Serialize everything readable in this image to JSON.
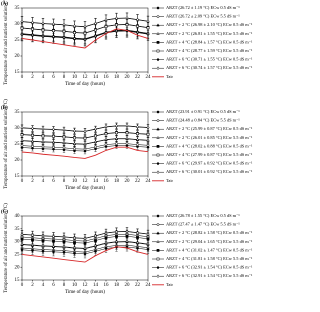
{
  "chart_data": [
    {
      "type": "line",
      "label": "(A)",
      "xlabel": "Time of day (hours)",
      "ylabel": "Temperature of air and nutrient solution (°C)",
      "x": [
        0,
        2,
        4,
        6,
        8,
        10,
        12,
        14,
        16,
        18,
        20,
        22,
        24
      ],
      "xlim": [
        0,
        24
      ],
      "xticks": [
        0,
        2,
        4,
        6,
        8,
        10,
        12,
        14,
        16,
        18,
        20,
        22,
        24
      ],
      "ylim": [
        15,
        35
      ],
      "yticks": [
        15,
        20,
        25,
        30,
        35
      ],
      "series": [
        {
          "name": "ARZT (26.72 ± 1.19 °C) ECw 0.5 dS m⁻¹",
          "color": "#000000",
          "marker": "circle",
          "error": 1.2,
          "values": [
            26.7,
            26.4,
            26.1,
            25.9,
            25.7,
            25.3,
            25.1,
            26.1,
            27.2,
            27.7,
            27.8,
            27.3,
            26.8
          ]
        },
        {
          "name": "ARZT (26.72 ± 2.09 °C) ECw 5.5 dS m⁻¹",
          "color": "#000000",
          "marker": "circle-open",
          "error": 2.1,
          "values": [
            26.8,
            26.5,
            26.2,
            26.0,
            25.8,
            25.4,
            25.2,
            26.2,
            27.3,
            27.8,
            27.9,
            27.4,
            26.9
          ]
        },
        {
          "name": "ARZT + 2 °C (26.98 ± 2.10 °C) ECw 0.5 dS m⁻¹",
          "color": "#000000",
          "marker": "triangle",
          "error": 2.1,
          "values": [
            27.0,
            26.7,
            26.4,
            26.2,
            26.0,
            25.6,
            25.4,
            26.4,
            27.5,
            28.0,
            28.1,
            27.6,
            27.1
          ]
        },
        {
          "name": "ARZT + 2 °C (26.81 ± 1.55 °C) ECw 5.5 dS m⁻¹",
          "color": "#000000",
          "marker": "triangle-open",
          "error": 1.6,
          "values": [
            26.9,
            26.6,
            26.3,
            26.1,
            25.9,
            25.5,
            25.3,
            26.3,
            27.4,
            27.9,
            28.0,
            27.5,
            27.0
          ]
        },
        {
          "name": "ARZT + 4 °C (28.84 ± 1.57 °C) ECw 0.5 dS m⁻¹",
          "color": "#000000",
          "marker": "square",
          "error": 1.6,
          "values": [
            28.8,
            28.5,
            28.2,
            28.0,
            27.8,
            27.4,
            27.2,
            28.2,
            29.3,
            29.8,
            29.9,
            29.4,
            28.9
          ]
        },
        {
          "name": "ARZT + 4 °C (28.77 ± 1.59 °C) ECw 5.5 dS m⁻¹",
          "color": "#000000",
          "marker": "square-open",
          "error": 1.6,
          "values": [
            28.7,
            28.4,
            28.1,
            27.9,
            27.7,
            27.3,
            27.1,
            28.1,
            29.2,
            29.7,
            29.8,
            29.3,
            28.8
          ]
        },
        {
          "name": "ARZT + 6 °C (30.71 ± 1.55 °C) ECw 0.5 dS m⁻¹",
          "color": "#000000",
          "marker": "diamond",
          "error": 1.6,
          "values": [
            30.7,
            30.4,
            30.1,
            29.9,
            29.7,
            29.3,
            29.1,
            30.1,
            31.2,
            31.7,
            31.8,
            31.3,
            30.8
          ]
        },
        {
          "name": "ARZT + 6 °C (30.74 ± 1.57 °C) ECw 5.5 dS m⁻¹",
          "color": "#000000",
          "marker": "diamond-open",
          "error": 1.6,
          "values": [
            30.8,
            30.5,
            30.2,
            30.0,
            29.8,
            29.4,
            29.2,
            30.2,
            31.3,
            31.8,
            31.9,
            31.4,
            30.9
          ]
        },
        {
          "name": "Tair",
          "color": "#d62728",
          "marker": "none",
          "values": [
            25.5,
            25.0,
            24.5,
            24.0,
            23.5,
            23.0,
            22.5,
            25.0,
            27.0,
            28.5,
            28.0,
            26.5,
            25.5
          ]
        }
      ]
    },
    {
      "type": "line",
      "label": "(B)",
      "xlabel": "Time of day (hours)",
      "ylabel": "Temperature of air and nutrient solution (°C)",
      "x": [
        0,
        2,
        4,
        6,
        8,
        10,
        12,
        14,
        16,
        18,
        20,
        22,
        24
      ],
      "xlim": [
        0,
        24
      ],
      "xticks": [
        0,
        2,
        4,
        6,
        8,
        10,
        12,
        14,
        16,
        18,
        20,
        22,
        24
      ],
      "ylim": [
        15,
        35
      ],
      "yticks": [
        15,
        20,
        25,
        30,
        35
      ],
      "series": [
        {
          "name": "ARZT (23.91 ± 0.91 °C) ECw 0.5 dS m⁻¹",
          "color": "#000000",
          "marker": "circle",
          "error": 0.9,
          "values": [
            23.9,
            23.7,
            23.5,
            23.4,
            23.2,
            22.9,
            22.8,
            23.5,
            24.2,
            24.5,
            24.5,
            24.2,
            24.0
          ]
        },
        {
          "name": "ARZT (24.48 ± 0.84 °C) ECw 5.5 dS m⁻¹",
          "color": "#000000",
          "marker": "circle-open",
          "error": 0.8,
          "values": [
            24.5,
            24.3,
            24.1,
            24.0,
            23.8,
            23.5,
            23.4,
            24.1,
            24.8,
            25.1,
            25.1,
            24.8,
            24.6
          ]
        },
        {
          "name": "ARZT + 2 °C (25.99 ± 0.87 °C) ECw 0.5 dS m⁻¹",
          "color": "#000000",
          "marker": "triangle",
          "error": 0.9,
          "values": [
            26.0,
            25.8,
            25.6,
            25.5,
            25.3,
            25.0,
            24.9,
            25.6,
            26.3,
            26.6,
            26.6,
            26.3,
            26.1
          ]
        },
        {
          "name": "ARZT + 2 °C (26.01 ± 0.85 °C) ECw 5.5 dS m⁻¹",
          "color": "#000000",
          "marker": "triangle-open",
          "error": 0.9,
          "values": [
            26.1,
            25.9,
            25.7,
            25.6,
            25.4,
            25.1,
            25.0,
            25.7,
            26.4,
            26.7,
            26.7,
            26.4,
            26.2
          ]
        },
        {
          "name": "ARZT + 4 °C (28.02 ± 0.88 °C) ECw 0.5 dS m⁻¹",
          "color": "#000000",
          "marker": "square",
          "error": 0.9,
          "values": [
            28.0,
            27.8,
            27.6,
            27.5,
            27.3,
            27.0,
            26.9,
            27.6,
            28.3,
            28.6,
            28.6,
            28.3,
            28.1
          ]
        },
        {
          "name": "ARZT + 4 °C (27.99 ± 0.87 °C) ECw 5.5 dS m⁻¹",
          "color": "#000000",
          "marker": "square-open",
          "error": 0.9,
          "values": [
            27.9,
            27.7,
            27.5,
            27.4,
            27.2,
            26.9,
            26.8,
            27.5,
            28.2,
            28.5,
            28.5,
            28.2,
            28.0
          ]
        },
        {
          "name": "ARZT + 6 °C (29.97 ± 0.92 °C) ECw 0.5 dS m⁻¹",
          "color": "#000000",
          "marker": "diamond",
          "error": 0.9,
          "values": [
            30.0,
            29.8,
            29.6,
            29.5,
            29.3,
            29.0,
            28.9,
            29.6,
            30.3,
            30.6,
            30.6,
            30.3,
            30.1
          ]
        },
        {
          "name": "ARZT + 6 °C (30.01 ± 0.92 °C) ECw 5.5 dS m⁻¹",
          "color": "#000000",
          "marker": "diamond-open",
          "error": 0.9,
          "values": [
            30.1,
            29.9,
            29.7,
            29.6,
            29.4,
            29.1,
            29.0,
            29.7,
            30.4,
            30.7,
            30.7,
            30.4,
            30.2
          ]
        },
        {
          "name": "Tair",
          "color": "#d62728",
          "marker": "none",
          "values": [
            22.5,
            22.2,
            21.8,
            21.5,
            21.2,
            20.8,
            20.5,
            21.5,
            23.0,
            24.0,
            24.0,
            23.0,
            22.6
          ]
        }
      ]
    },
    {
      "type": "line",
      "label": "(C)",
      "xlabel": "Time of day (hours)",
      "ylabel": "Temperature of air and nutrient solution (°C)",
      "x": [
        0,
        2,
        4,
        6,
        8,
        10,
        12,
        14,
        16,
        18,
        20,
        22,
        24
      ],
      "xlim": [
        0,
        24
      ],
      "xticks": [
        0,
        2,
        4,
        6,
        8,
        10,
        12,
        14,
        16,
        18,
        20,
        22,
        24
      ],
      "ylim": [
        15,
        40
      ],
      "yticks": [
        15,
        20,
        25,
        30,
        35,
        40
      ],
      "series": [
        {
          "name": "ARZT (26.78 ± 1.55 °C) ECw 0.5 dS m⁻¹",
          "color": "#000000",
          "marker": "circle",
          "error": 1.6,
          "values": [
            26.8,
            26.5,
            26.2,
            26.0,
            25.8,
            25.4,
            25.2,
            26.2,
            27.3,
            27.8,
            27.9,
            27.4,
            26.9
          ]
        },
        {
          "name": "ARZT (27.47 ± 1.47 °C) ECw 5.5 dS m⁻¹",
          "color": "#000000",
          "marker": "circle-open",
          "error": 1.5,
          "values": [
            27.5,
            27.2,
            26.9,
            26.7,
            26.5,
            26.1,
            25.9,
            26.9,
            28.0,
            28.5,
            28.6,
            28.1,
            27.6
          ]
        },
        {
          "name": "ARZT + 2 °C (28.82 ± 1.58 °C) ECw 0.5 dS m⁻¹",
          "color": "#000000",
          "marker": "triangle",
          "error": 1.6,
          "values": [
            28.8,
            28.5,
            28.2,
            28.0,
            27.8,
            27.4,
            27.2,
            28.2,
            29.3,
            29.8,
            29.9,
            29.4,
            28.9
          ]
        },
        {
          "name": "ARZT + 2 °C (29.04 ± 1.65 °C) ECw 5.5 dS m⁻¹",
          "color": "#000000",
          "marker": "triangle-open",
          "error": 1.7,
          "values": [
            29.0,
            28.7,
            28.4,
            28.2,
            28.0,
            27.6,
            27.4,
            28.4,
            29.5,
            30.0,
            30.1,
            29.6,
            29.1
          ]
        },
        {
          "name": "ARZT + 4 °C (31.02 ± 1.47 °C) ECw 0.5 dS m⁻¹",
          "color": "#000000",
          "marker": "square",
          "error": 1.5,
          "values": [
            31.0,
            30.7,
            30.4,
            30.2,
            30.0,
            29.6,
            29.4,
            30.4,
            31.5,
            32.0,
            32.1,
            31.6,
            31.1
          ]
        },
        {
          "name": "ARZT + 4 °C (31.81 ± 1.58 °C) ECw 5.5 dS m⁻¹",
          "color": "#000000",
          "marker": "square-open",
          "error": 1.6,
          "values": [
            31.8,
            31.5,
            31.2,
            31.0,
            30.8,
            30.4,
            30.2,
            31.2,
            32.3,
            32.8,
            32.9,
            32.4,
            31.9
          ]
        },
        {
          "name": "ARZT + 6 °C (32.91 ± 1.54 °C) ECw 0.5 dS m⁻¹",
          "color": "#000000",
          "marker": "diamond",
          "error": 1.5,
          "values": [
            32.9,
            32.6,
            32.3,
            32.1,
            31.9,
            31.5,
            31.3,
            32.3,
            33.4,
            33.9,
            34.0,
            33.5,
            33.0
          ]
        },
        {
          "name": "ARZT + 6 °C (32.91 ± 1.54 °C) ECw 5.5 dS m⁻¹",
          "color": "#000000",
          "marker": "diamond-open",
          "error": 1.5,
          "values": [
            32.8,
            32.5,
            32.2,
            32.0,
            31.8,
            31.4,
            31.2,
            32.2,
            33.3,
            33.8,
            33.9,
            33.4,
            32.9
          ]
        },
        {
          "name": "Tair",
          "color": "#d62728",
          "marker": "none",
          "values": [
            25.0,
            24.5,
            24.0,
            23.5,
            23.0,
            22.5,
            22.0,
            24.5,
            26.5,
            28.0,
            27.5,
            26.0,
            25.0
          ]
        }
      ]
    }
  ]
}
